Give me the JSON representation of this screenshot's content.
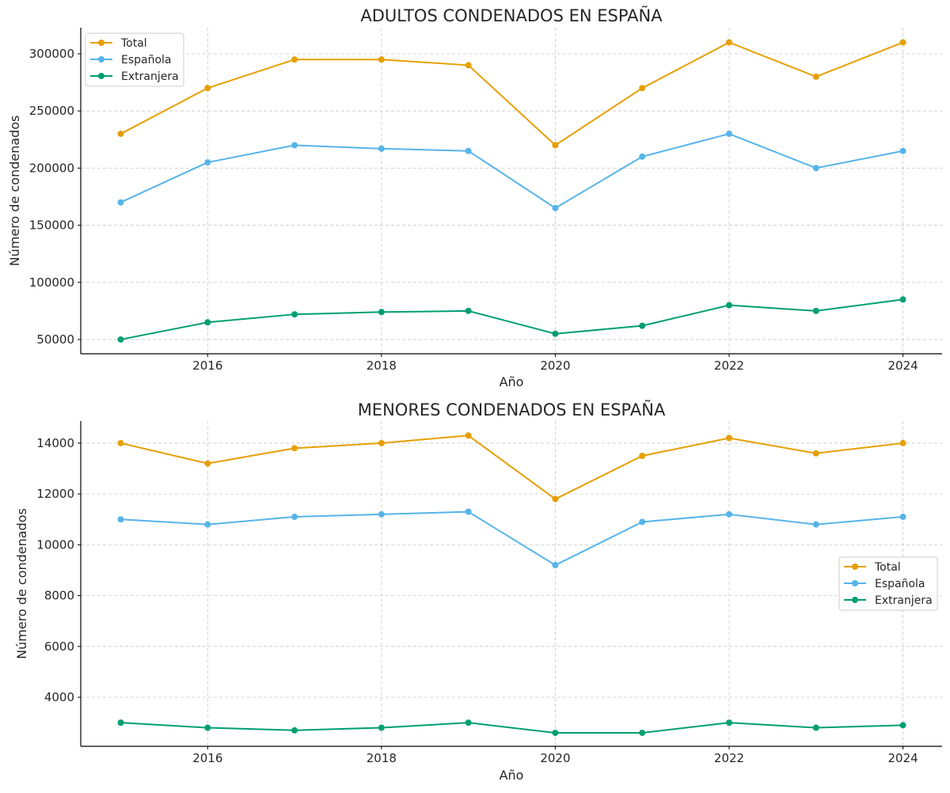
{
  "chart_data": [
    {
      "type": "line",
      "title": "ADULTOS CONDENADOS EN ESPAÑA",
      "xlabel": "Año",
      "ylabel": "Número de condenados",
      "x": [
        2015,
        2016,
        2017,
        2018,
        2019,
        2020,
        2021,
        2022,
        2023,
        2024
      ],
      "xlim": [
        2014.54,
        2024.45
      ],
      "ylim": [
        37500,
        322850
      ],
      "xticks": [
        2016,
        2018,
        2020,
        2022,
        2024
      ],
      "yticks": [
        50000,
        100000,
        150000,
        200000,
        250000,
        300000
      ],
      "grid": true,
      "legend": "top-left",
      "series": [
        {
          "name": "Total",
          "color": "#E69F00",
          "values": [
            230000,
            270000,
            295000,
            295000,
            290000,
            220000,
            270000,
            310000,
            280000,
            310000
          ]
        },
        {
          "name": "Española",
          "color": "#56B4E9",
          "values": [
            170000,
            205000,
            220000,
            217000,
            215000,
            165000,
            210000,
            230000,
            200000,
            215000
          ]
        },
        {
          "name": "Extranjera",
          "color": "#009E73",
          "values": [
            50000,
            65000,
            72000,
            74000,
            75000,
            55000,
            62000,
            80000,
            75000,
            85000
          ]
        }
      ]
    },
    {
      "type": "line",
      "title": "MENORES CONDENADOS EN ESPAÑA",
      "xlabel": "Año",
      "ylabel": "Número de condenados",
      "x": [
        2015,
        2016,
        2017,
        2018,
        2019,
        2020,
        2021,
        2022,
        2023,
        2024
      ],
      "xlim": [
        2014.54,
        2024.45
      ],
      "ylim": [
        2070,
        14870
      ],
      "xticks": [
        2016,
        2018,
        2020,
        2022,
        2024
      ],
      "yticks": [
        4000,
        6000,
        8000,
        10000,
        12000,
        14000
      ],
      "grid": true,
      "legend": "center-right",
      "series": [
        {
          "name": "Total",
          "color": "#E69F00",
          "values": [
            14000,
            13200,
            13800,
            14000,
            14300,
            11800,
            13500,
            14200,
            13600,
            14000
          ]
        },
        {
          "name": "Española",
          "color": "#56B4E9",
          "values": [
            11000,
            10800,
            11100,
            11200,
            11300,
            9200,
            10900,
            11200,
            10800,
            11100
          ]
        },
        {
          "name": "Extranjera",
          "color": "#009E73",
          "values": [
            3000,
            2800,
            2700,
            2800,
            3000,
            2600,
            2600,
            3000,
            2800,
            2900
          ]
        }
      ]
    }
  ]
}
